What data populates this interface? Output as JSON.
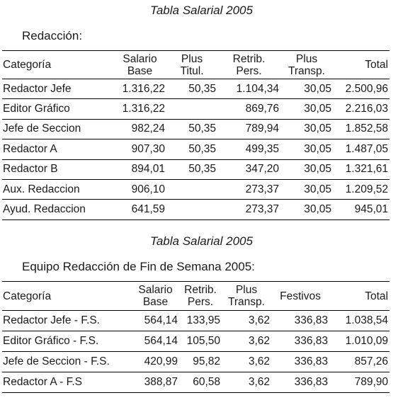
{
  "section1": {
    "caption": "Tabla Salarial 2005",
    "subtitle": "Redacción:",
    "headers": [
      [
        "Categoría"
      ],
      [
        "Salario",
        "Base"
      ],
      [
        "Plus",
        "Titul."
      ],
      [
        "Retrib.",
        "Pers."
      ],
      [
        "Plus",
        "Transp."
      ],
      [
        "Total"
      ]
    ],
    "rows": [
      [
        "Redactor Jefe",
        "1.316,22",
        "50,35",
        "1.104,34",
        "30,05",
        "2.500,96"
      ],
      [
        "Editor Gráfico",
        "1.316,22",
        "",
        "869,76",
        "30,05",
        "2.216,03"
      ],
      [
        "Jefe de Seccion",
        "982,24",
        "50,35",
        "789,94",
        "30,05",
        "1.852,58"
      ],
      [
        "Redactor A",
        "907,30",
        "50,35",
        "499,35",
        "30,05",
        "1.487,05"
      ],
      [
        "Redactor B",
        "894,01",
        "50,35",
        "347,20",
        "30,05",
        "1.321,61"
      ],
      [
        "Aux. Redaccion",
        "906,10",
        "",
        "273,37",
        "30,05",
        "1.209,52"
      ],
      [
        "Ayud. Redaccion",
        "641,59",
        "",
        "273,37",
        "30,05",
        "945,01"
      ]
    ]
  },
  "section2": {
    "caption": "Tabla Salarial 2005",
    "subtitle": "Equipo Redacción de Fin de Semana 2005:",
    "headers": [
      [
        "Categoría"
      ],
      [
        "Salario",
        "Base"
      ],
      [
        "Retrib.",
        "Pers."
      ],
      [
        "Plus",
        "Transp."
      ],
      [
        "Festivos"
      ],
      [
        "Total"
      ]
    ],
    "rows": [
      [
        "Redactor Jefe - F.S.",
        "564,14",
        "133,95",
        "3,62",
        "336,83",
        "1.038,54"
      ],
      [
        "Editor Gráfico - F.S.",
        "564,14",
        "105,50",
        "3,62",
        "336,83",
        "1.010,09"
      ],
      [
        "Jefe de Seccion - F.S.",
        "420,99",
        "95,82",
        "3,62",
        "336,83",
        "857,26"
      ],
      [
        "Redactor A - F.S",
        "388,87",
        "60,58",
        "3,62",
        "336,83",
        "789,90"
      ]
    ]
  }
}
